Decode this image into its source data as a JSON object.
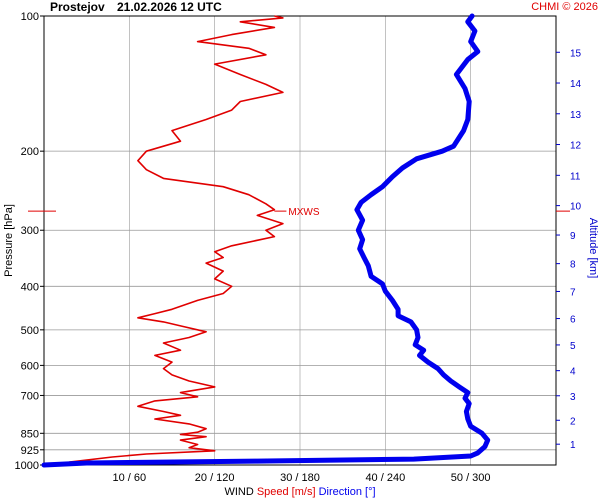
{
  "header": {
    "station": "Prostejov",
    "timestamp": "21.02.2026 12 UTC",
    "credit": "CHMI © 2026"
  },
  "chart_data": {
    "type": "line",
    "title": "Prostejov   21.02.2026 12 UTC",
    "y_left_label": "Pressure [hPa]",
    "y_right_label": "Altitude [km]",
    "x_label_parts": [
      "WIND",
      "Speed [m/s]",
      "Direction [°]"
    ],
    "pressure_ticks": [
      100,
      200,
      300,
      400,
      500,
      600,
      700,
      850,
      925,
      1000
    ],
    "pressure_ylim": [
      1000,
      100
    ],
    "pressure_scale": "log",
    "altitude_ticks": [
      1,
      2,
      3,
      4,
      5,
      6,
      7,
      8,
      9,
      10,
      11,
      12,
      13,
      14,
      15
    ],
    "x_tick_labels": [
      "10 / 60",
      "20 / 120",
      "30 / 180",
      "40 / 240",
      "50 / 300"
    ],
    "speed_xlim": [
      0,
      60
    ],
    "direction_xlim": [
      0,
      360
    ],
    "grid": "vertical at x ticks, horizontal at pressure ticks",
    "annotation": "MXWS",
    "annotation_pressure": 272,
    "colors": {
      "speed": "#e00000",
      "direction": "#0000ee",
      "grid": "#999999",
      "altitude_axis": "#0000cc",
      "credit": "#e00000"
    },
    "series": [
      {
        "name": "Speed [m/s]",
        "color": "#e00000",
        "points": [
          [
            4,
            1000
          ],
          [
            3,
            985
          ],
          [
            8,
            960
          ],
          [
            12,
            945
          ],
          [
            20,
            930
          ],
          [
            17,
            915
          ],
          [
            18,
            900
          ],
          [
            16,
            880
          ],
          [
            19,
            865
          ],
          [
            16,
            855
          ],
          [
            18,
            845
          ],
          [
            19,
            830
          ],
          [
            17,
            810
          ],
          [
            13,
            790
          ],
          [
            16,
            775
          ],
          [
            14,
            760
          ],
          [
            11,
            740
          ],
          [
            13,
            720
          ],
          [
            18,
            705
          ],
          [
            16,
            690
          ],
          [
            20,
            670
          ],
          [
            17,
            650
          ],
          [
            15,
            630
          ],
          [
            14,
            610
          ],
          [
            15,
            590
          ],
          [
            13,
            570
          ],
          [
            16,
            555
          ],
          [
            14,
            535
          ],
          [
            17,
            520
          ],
          [
            19,
            505
          ],
          [
            16,
            490
          ],
          [
            14,
            480
          ],
          [
            11,
            470
          ],
          [
            13,
            460
          ],
          [
            15,
            450
          ],
          [
            18,
            430
          ],
          [
            21,
            415
          ],
          [
            22,
            400
          ],
          [
            20,
            385
          ],
          [
            21,
            370
          ],
          [
            19,
            355
          ],
          [
            21,
            345
          ],
          [
            20,
            335
          ],
          [
            22,
            325
          ],
          [
            27,
            310
          ],
          [
            26,
            300
          ],
          [
            28,
            290
          ],
          [
            25,
            278
          ],
          [
            27,
            270
          ],
          [
            26,
            262
          ],
          [
            24,
            250
          ],
          [
            21,
            240
          ],
          [
            14,
            230
          ],
          [
            12,
            220
          ],
          [
            11,
            210
          ],
          [
            12,
            200
          ],
          [
            16,
            190
          ],
          [
            15,
            180
          ],
          [
            19,
            170
          ],
          [
            22,
            162
          ],
          [
            23,
            155
          ],
          [
            28,
            148
          ],
          [
            26,
            142
          ],
          [
            23,
            135
          ],
          [
            20,
            128
          ],
          [
            26,
            122
          ],
          [
            24,
            118
          ],
          [
            18,
            114
          ],
          [
            22,
            110
          ],
          [
            27,
            106
          ],
          [
            23,
            103
          ],
          [
            28,
            101
          ],
          [
            27,
            100
          ]
        ]
      },
      {
        "name": "Direction [°]",
        "color": "#0000ee",
        "points": [
          [
            0,
            1000
          ],
          [
            30,
            990
          ],
          [
            150,
            980
          ],
          [
            260,
            970
          ],
          [
            300,
            955
          ],
          [
            305,
            940
          ],
          [
            310,
            910
          ],
          [
            312,
            880
          ],
          [
            308,
            850
          ],
          [
            300,
            820
          ],
          [
            298,
            790
          ],
          [
            297,
            760
          ],
          [
            299,
            730
          ],
          [
            296,
            710
          ],
          [
            298,
            690
          ],
          [
            292,
            670
          ],
          [
            286,
            650
          ],
          [
            281,
            630
          ],
          [
            277,
            610
          ],
          [
            270,
            590
          ],
          [
            264,
            570
          ],
          [
            267,
            555
          ],
          [
            261,
            540
          ],
          [
            263,
            520
          ],
          [
            262,
            500
          ],
          [
            258,
            480
          ],
          [
            249,
            465
          ],
          [
            249,
            450
          ],
          [
            245,
            430
          ],
          [
            240,
            410
          ],
          [
            238,
            395
          ],
          [
            230,
            380
          ],
          [
            228,
            360
          ],
          [
            225,
            345
          ],
          [
            222,
            330
          ],
          [
            224,
            315
          ],
          [
            221,
            300
          ],
          [
            224,
            285
          ],
          [
            220,
            270
          ],
          [
            223,
            260
          ],
          [
            230,
            250
          ],
          [
            238,
            240
          ],
          [
            245,
            228
          ],
          [
            252,
            218
          ],
          [
            262,
            208
          ],
          [
            280,
            200
          ],
          [
            288,
            195
          ],
          [
            295,
            180
          ],
          [
            298,
            170
          ],
          [
            299,
            155
          ],
          [
            296,
            145
          ],
          [
            290,
            135
          ],
          [
            298,
            125
          ],
          [
            305,
            120
          ],
          [
            300,
            114
          ],
          [
            303,
            108
          ],
          [
            298,
            103
          ],
          [
            301,
            100
          ]
        ]
      }
    ]
  }
}
